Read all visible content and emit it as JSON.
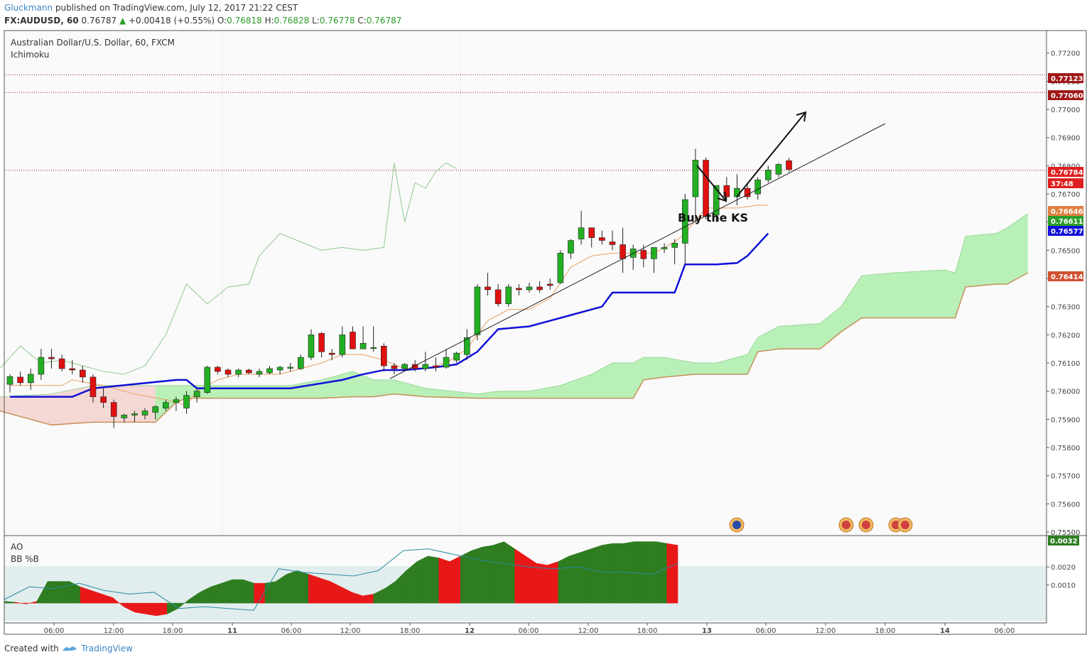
{
  "header": {
    "author": "Gluckmann",
    "published": "published on TradingView.com, July 12, 2017 21:22 CEST",
    "symbol": "FX:AUDUSD, 60",
    "last": "0.76787",
    "change_arrow": "▲",
    "change": "+0.00418 (+0.55%)",
    "o_label": "O:",
    "o": "0.76818",
    "h_label": "H:",
    "h": "0.76828",
    "l_label": "L:",
    "l": "0.76778",
    "c_label": "C:",
    "c": "0.76787"
  },
  "pane": {
    "title": "Australian Dollar/U.S. Dollar, 60, FXCM",
    "indicator": "Ichimoku",
    "sub1": "AO",
    "sub2": "BB %B"
  },
  "footer": {
    "created": "Created with",
    "brand": "TradingView"
  },
  "annotation": "Buy the KS",
  "colors": {
    "up": "#22b022",
    "down": "#e01010",
    "kijun": "#1010d8",
    "tenkan": "#e8a060",
    "chikou": "#90c890",
    "cloud_bull": "#b8f0b8",
    "cloud_bear": "#f4d8d4",
    "ao_green": "#2e7d20",
    "ao_red": "#e81818"
  },
  "chart_data": {
    "type": "candlestick",
    "symbol": "AUDUSD",
    "timeframe": "60",
    "ylim": [
      0.7549,
      0.7728
    ],
    "y_ticks": [
      "0.77200",
      "0.77100",
      "0.77000",
      "0.76900",
      "0.76800",
      "0.76700",
      "0.76600",
      "0.76500",
      "0.76400",
      "0.76300",
      "0.76200",
      "0.76100",
      "0.76000",
      "0.75900",
      "0.75800",
      "0.75700",
      "0.75600",
      "0.75500"
    ],
    "x_labels": [
      "06:00",
      "12:00",
      "18:00",
      "11",
      "06:00",
      "12:00",
      "18:00",
      "12",
      "06:00",
      "12:00",
      "18:00",
      "13",
      "06:00",
      "12:00",
      "18:00",
      "14",
      "06:00"
    ],
    "price_labels": [
      {
        "value": "0.77123",
        "color": "#a01818"
      },
      {
        "value": "0.77060",
        "color": "#a01818"
      },
      {
        "value": "0.76784",
        "color": "#e02020"
      },
      {
        "value": "37:48",
        "color": "#e02020"
      },
      {
        "value": "0.76646",
        "color": "#e08040"
      },
      {
        "value": "0.76611",
        "color": "#2a9d2a"
      },
      {
        "value": "0.76577",
        "color": "#1010d8"
      },
      {
        "value": "0.76414",
        "color": "#d05030"
      }
    ],
    "h_lines": [
      0.77123,
      0.7706,
      0.76784
    ],
    "candles": [
      [
        0.76024,
        0.7606,
        0.75995,
        0.76052
      ],
      [
        0.7605,
        0.7607,
        0.7602,
        0.7603
      ],
      [
        0.7603,
        0.7608,
        0.76005,
        0.7606
      ],
      [
        0.7606,
        0.7615,
        0.7604,
        0.7612
      ],
      [
        0.7612,
        0.7615,
        0.7608,
        0.76115
      ],
      [
        0.76115,
        0.7613,
        0.7607,
        0.7608
      ],
      [
        0.7608,
        0.7611,
        0.7606,
        0.76075
      ],
      [
        0.76075,
        0.7609,
        0.7603,
        0.7605
      ],
      [
        0.7605,
        0.7606,
        0.7596,
        0.7598
      ],
      [
        0.7598,
        0.7601,
        0.7594,
        0.7596
      ],
      [
        0.7596,
        0.7597,
        0.7587,
        0.7591
      ],
      [
        0.75905,
        0.7592,
        0.7589,
        0.75915
      ],
      [
        0.75915,
        0.7593,
        0.7589,
        0.7592
      ],
      [
        0.75915,
        0.7594,
        0.759,
        0.7593
      ],
      [
        0.75925,
        0.7595,
        0.759,
        0.75945
      ],
      [
        0.7594,
        0.7597,
        0.7593,
        0.7596
      ],
      [
        0.7596,
        0.7598,
        0.7593,
        0.7597
      ],
      [
        0.7594,
        0.76,
        0.7592,
        0.75985
      ],
      [
        0.7598,
        0.7601,
        0.7596,
        0.76
      ],
      [
        0.75995,
        0.7609,
        0.7599,
        0.76085
      ],
      [
        0.76085,
        0.7609,
        0.7606,
        0.7607
      ],
      [
        0.76075,
        0.7608,
        0.7605,
        0.7606
      ],
      [
        0.7606,
        0.7608,
        0.7605,
        0.76075
      ],
      [
        0.76075,
        0.7608,
        0.7606,
        0.76065
      ],
      [
        0.7606,
        0.7608,
        0.7605,
        0.7607
      ],
      [
        0.76065,
        0.7609,
        0.7606,
        0.7608
      ],
      [
        0.76075,
        0.7609,
        0.7606,
        0.76085
      ],
      [
        0.76085,
        0.761,
        0.7607,
        0.76085
      ],
      [
        0.7608,
        0.7613,
        0.76075,
        0.7612
      ],
      [
        0.7612,
        0.7622,
        0.7611,
        0.762
      ],
      [
        0.76205,
        0.7621,
        0.7612,
        0.7614
      ],
      [
        0.76135,
        0.7615,
        0.7611,
        0.7613
      ],
      [
        0.7613,
        0.7623,
        0.7612,
        0.762
      ],
      [
        0.7621,
        0.7623,
        0.7615,
        0.7615
      ],
      [
        0.7615,
        0.7623,
        0.7615,
        0.7617
      ],
      [
        0.76155,
        0.7623,
        0.7614,
        0.76155
      ],
      [
        0.7616,
        0.7617,
        0.7607,
        0.7609
      ],
      [
        0.7609,
        0.761,
        0.7606,
        0.7608
      ],
      [
        0.7608,
        0.761,
        0.7607,
        0.76095
      ],
      [
        0.76095,
        0.7611,
        0.7607,
        0.7608
      ],
      [
        0.7608,
        0.7614,
        0.7607,
        0.76095
      ],
      [
        0.7609,
        0.7612,
        0.7607,
        0.76085
      ],
      [
        0.76085,
        0.7615,
        0.7608,
        0.7612
      ],
      [
        0.7611,
        0.7614,
        0.761,
        0.76135
      ],
      [
        0.7613,
        0.7622,
        0.7611,
        0.7619
      ],
      [
        0.762,
        0.7638,
        0.7618,
        0.7637
      ],
      [
        0.7637,
        0.7642,
        0.7634,
        0.7636
      ],
      [
        0.7636,
        0.7638,
        0.763,
        0.7631
      ],
      [
        0.7631,
        0.7638,
        0.763,
        0.7637
      ],
      [
        0.76365,
        0.7638,
        0.7634,
        0.7636
      ],
      [
        0.7636,
        0.76385,
        0.7635,
        0.7637
      ],
      [
        0.7637,
        0.7639,
        0.7635,
        0.7636
      ],
      [
        0.7638,
        0.764,
        0.7636,
        0.76375
      ],
      [
        0.76385,
        0.765,
        0.7638,
        0.7649
      ],
      [
        0.7649,
        0.7654,
        0.7647,
        0.76535
      ],
      [
        0.7654,
        0.7664,
        0.7652,
        0.7658
      ],
      [
        0.7658,
        0.7658,
        0.7651,
        0.76545
      ],
      [
        0.76545,
        0.7657,
        0.7652,
        0.76535
      ],
      [
        0.7653,
        0.7657,
        0.765,
        0.7652
      ],
      [
        0.7652,
        0.7658,
        0.7642,
        0.7647
      ],
      [
        0.76475,
        0.7652,
        0.7643,
        0.76505
      ],
      [
        0.765,
        0.7652,
        0.7644,
        0.7647
      ],
      [
        0.7647,
        0.7651,
        0.7642,
        0.7651
      ],
      [
        0.76505,
        0.76525,
        0.7649,
        0.7651
      ],
      [
        0.7651,
        0.7654,
        0.7645,
        0.76525
      ],
      [
        0.76525,
        0.767,
        0.7645,
        0.7668
      ],
      [
        0.7669,
        0.7686,
        0.766,
        0.7682
      ],
      [
        0.7682,
        0.7683,
        0.7661,
        0.7662
      ],
      [
        0.76625,
        0.7673,
        0.766,
        0.7673
      ],
      [
        0.7673,
        0.7676,
        0.7668,
        0.7669
      ],
      [
        0.7669,
        0.7677,
        0.7666,
        0.7672
      ],
      [
        0.7672,
        0.7674,
        0.7668,
        0.7669
      ],
      [
        0.767,
        0.7676,
        0.7668,
        0.7675
      ],
      [
        0.7675,
        0.768,
        0.7674,
        0.76785
      ],
      [
        0.7677,
        0.7681,
        0.7676,
        0.76805
      ],
      [
        0.76818,
        0.76828,
        0.76778,
        0.76787
      ]
    ],
    "kijun": [
      [
        0,
        0.7598
      ],
      [
        6,
        0.7598
      ],
      [
        8,
        0.7601
      ],
      [
        16,
        0.7604
      ],
      [
        17,
        0.7604
      ],
      [
        18,
        0.7601
      ],
      [
        25,
        0.7601
      ],
      [
        27,
        0.7601
      ],
      [
        32,
        0.7604
      ],
      [
        34,
        0.7606
      ],
      [
        36,
        0.76075
      ],
      [
        38,
        0.76075
      ],
      [
        41,
        0.76085
      ],
      [
        43,
        0.76095
      ],
      [
        45,
        0.7614
      ],
      [
        47,
        0.7622
      ],
      [
        50,
        0.7623
      ],
      [
        54,
        0.7627
      ],
      [
        57,
        0.763
      ],
      [
        58,
        0.7635
      ],
      [
        64,
        0.7635
      ],
      [
        65,
        0.7645
      ],
      [
        68,
        0.7645
      ],
      [
        70,
        0.76455
      ],
      [
        71,
        0.7648
      ],
      [
        73,
        0.7656
      ]
    ],
    "tenkan": [
      [
        0,
        0.7602
      ],
      [
        5,
        0.7602
      ],
      [
        6,
        0.7604
      ],
      [
        9,
        0.7602
      ],
      [
        12,
        0.7599
      ],
      [
        15,
        0.7597
      ],
      [
        17,
        0.7595
      ],
      [
        18,
        0.76
      ],
      [
        20,
        0.7604
      ],
      [
        22,
        0.7606
      ],
      [
        26,
        0.7606
      ],
      [
        28,
        0.7608
      ],
      [
        30,
        0.761
      ],
      [
        32,
        0.7613
      ],
      [
        34,
        0.7613
      ],
      [
        36,
        0.7611
      ],
      [
        38,
        0.7608
      ],
      [
        40,
        0.7608
      ],
      [
        42,
        0.761
      ],
      [
        44,
        0.7615
      ],
      [
        46,
        0.7625
      ],
      [
        48,
        0.7629
      ],
      [
        50,
        0.7629
      ],
      [
        52,
        0.7633
      ],
      [
        54,
        0.7644
      ],
      [
        56,
        0.7648
      ],
      [
        58,
        0.7649
      ],
      [
        60,
        0.7649
      ],
      [
        62,
        0.7649
      ],
      [
        64,
        0.7653
      ],
      [
        65,
        0.7656
      ],
      [
        67,
        0.7665
      ],
      [
        70,
        0.7665
      ],
      [
        72,
        0.7666
      ],
      [
        73,
        0.7666
      ]
    ],
    "chikou": [
      [
        -1,
        0.7608
      ],
      [
        1,
        0.7616
      ],
      [
        3,
        0.761
      ],
      [
        5,
        0.7611
      ],
      [
        7,
        0.7609
      ],
      [
        9,
        0.7607
      ],
      [
        11,
        0.7606
      ],
      [
        13,
        0.7609
      ],
      [
        15,
        0.762
      ],
      [
        17,
        0.7638
      ],
      [
        19,
        0.7631
      ],
      [
        21,
        0.7637
      ],
      [
        23,
        0.7638
      ],
      [
        24,
        0.7648
      ],
      [
        26,
        0.7656
      ],
      [
        28,
        0.7653
      ],
      [
        30,
        0.765
      ],
      [
        32,
        0.7651
      ],
      [
        34,
        0.765
      ],
      [
        36,
        0.7651
      ],
      [
        37,
        0.7681
      ],
      [
        38,
        0.766
      ],
      [
        39,
        0.7674
      ],
      [
        40,
        0.7672
      ],
      [
        41,
        0.7678
      ],
      [
        42,
        0.7681
      ],
      [
        43,
        0.7679
      ]
    ],
    "cloud": [
      [
        -1,
        0.7598,
        0.7593
      ],
      [
        4,
        0.7599,
        0.7588
      ],
      [
        8,
        0.7602,
        0.7589
      ],
      [
        14,
        0.7602,
        0.7589
      ],
      [
        16,
        0.7602,
        0.7596
      ],
      [
        17,
        0.7602,
        0.75975
      ],
      [
        19,
        0.7602,
        0.75975
      ],
      [
        23,
        0.7602,
        0.75975
      ],
      [
        27,
        0.7602,
        0.75975
      ],
      [
        30,
        0.7604,
        0.75975
      ],
      [
        33,
        0.7607,
        0.7598
      ],
      [
        35,
        0.7604,
        0.7598
      ],
      [
        37,
        0.7604,
        0.7599
      ],
      [
        40,
        0.7601,
        0.7598
      ],
      [
        45,
        0.7599,
        0.75975
      ],
      [
        47,
        0.76,
        0.75975
      ],
      [
        50,
        0.76,
        0.75975
      ],
      [
        53,
        0.7602,
        0.75975
      ],
      [
        56,
        0.7606,
        0.75975
      ],
      [
        58,
        0.761,
        0.75975
      ],
      [
        60,
        0.761,
        0.75975
      ],
      [
        61,
        0.7612,
        0.7604
      ],
      [
        63,
        0.7612,
        0.7605
      ],
      [
        66,
        0.761,
        0.7606
      ],
      [
        68,
        0.761,
        0.7606
      ],
      [
        71,
        0.7613,
        0.7606
      ],
      [
        72,
        0.7619,
        0.7614
      ],
      [
        74,
        0.7623,
        0.7615
      ],
      [
        78,
        0.7624,
        0.7615
      ],
      [
        80,
        0.763,
        0.7621
      ],
      [
        82,
        0.7641,
        0.7626
      ],
      [
        85,
        0.7642,
        0.7626
      ],
      [
        90,
        0.7643,
        0.7626
      ],
      [
        91,
        0.7642,
        0.7626
      ],
      [
        92,
        0.7655,
        0.7637
      ],
      [
        95,
        0.7656,
        0.7638
      ],
      [
        96,
        0.7658,
        0.7638
      ],
      [
        98,
        0.7663,
        0.7642
      ]
    ],
    "ao": [
      0.0001,
      5e-05,
      -5e-05,
      0.0001,
      0.0012,
      0.0012,
      0.0012,
      0.0009,
      0.0007,
      0.0005,
      0.0003,
      -0.0002,
      -0.0005,
      -0.0006,
      -0.0007,
      -0.0006,
      -0.0003,
      0.0002,
      0.0006,
      0.0009,
      0.0011,
      0.0013,
      0.0013,
      0.0011,
      0.0011,
      0.0012,
      0.0016,
      0.0018,
      0.0016,
      0.0014,
      0.0012,
      0.0009,
      0.0006,
      0.0004,
      0.0005,
      0.0008,
      0.0012,
      0.0018,
      0.0023,
      0.0026,
      0.0025,
      0.0023,
      0.0026,
      0.0029,
      0.0031,
      0.0032,
      0.0034,
      0.003,
      0.0026,
      0.0022,
      0.0021,
      0.0023,
      0.0026,
      0.0028,
      0.003,
      0.0032,
      0.0033,
      0.0033,
      0.0034,
      0.0034,
      0.0034,
      0.0033,
      0.0032
    ],
    "ao_ticks": [
      "0.0020",
      "0.0010"
    ],
    "ao_label": "0.0032",
    "ao_ylim": [
      -0.0009,
      0.0035
    ]
  }
}
